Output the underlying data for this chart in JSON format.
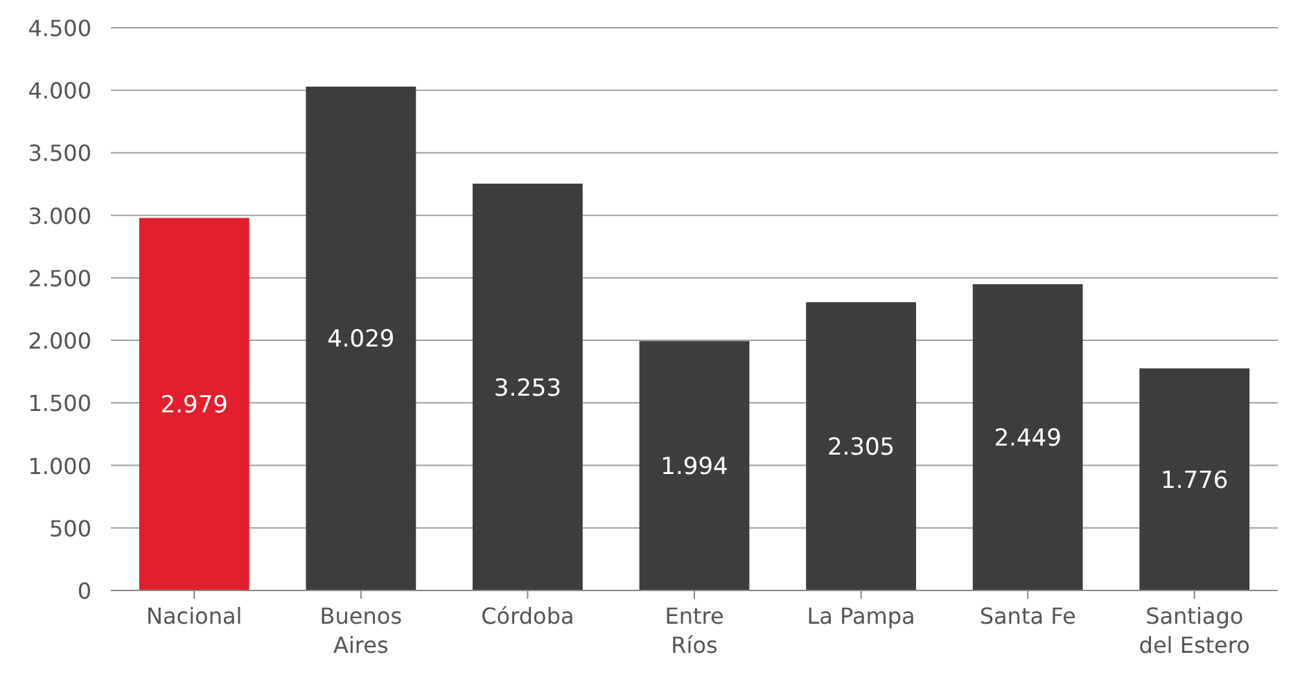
{
  "chart_data": {
    "type": "bar",
    "categories": [
      "Nacional",
      "Buenos\nAires",
      "Córdoba",
      "Entre\nRíos",
      "La Pampa",
      "Santa Fe",
      "Santiago\ndel Estero"
    ],
    "values": [
      2979,
      4029,
      3253,
      1994,
      2305,
      2449,
      1776
    ],
    "colors": [
      "#e31e2d",
      "#3d3d3f",
      "#3d3d3f",
      "#3d3d3f",
      "#3d3d3f",
      "#3d3d3f",
      "#3d3d3f"
    ],
    "ylim": [
      0,
      4500
    ],
    "yticks": [
      0,
      {
        "value": 500,
        "label": "500"
      },
      {
        "value": 1000,
        "label": "1.000"
      },
      {
        "value": 1500,
        "label": "1.500"
      },
      {
        "value": 2000,
        "label": "2.000"
      },
      {
        "value": 2500,
        "label": "2.500"
      },
      {
        "value": 3000,
        "label": "3.000"
      },
      {
        "value": 3500,
        "label": "3.500"
      },
      {
        "value": 4000,
        "label": "4.000"
      },
      {
        "value": 4500,
        "label": "4.500"
      }
    ],
    "value_labels": [
      "2.979",
      "4.029",
      "3.253",
      "1.994",
      "2.305",
      "2.449",
      "1.776"
    ],
    "grid": "y"
  }
}
